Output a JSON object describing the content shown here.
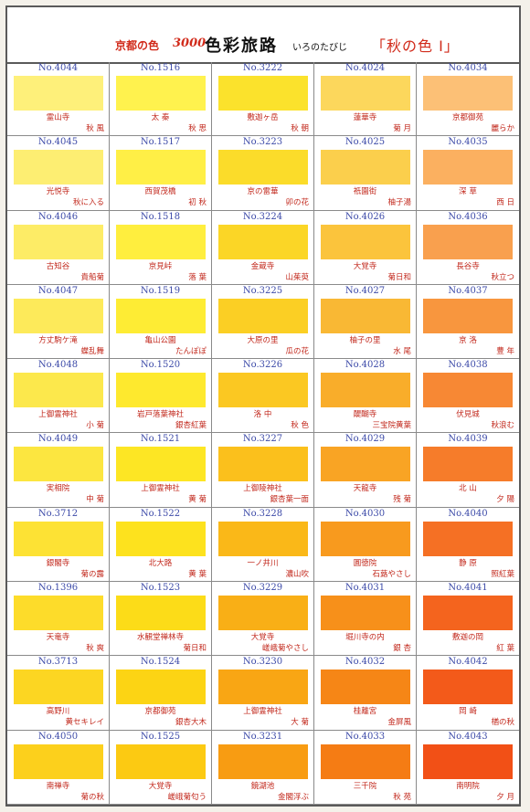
{
  "header": {
    "series": "京都の色",
    "count": "3000",
    "title": "色彩旅路",
    "subtitle": "いろのたびじ",
    "volume": "「秋の色 Ⅰ」"
  },
  "rows": [
    [
      {
        "no": "No.4044",
        "place": "霊山寺",
        "name": "秋 風",
        "color": "#fef07a"
      },
      {
        "no": "No.1516",
        "place": "太 秦",
        "name": "秋 思",
        "color": "#fff24e"
      },
      {
        "no": "No.3222",
        "place": "敷迦ヶ岳",
        "name": "秋 朝",
        "color": "#fbe22c"
      },
      {
        "no": "No.4024",
        "place": "蓮華寺",
        "name": "菊 月",
        "color": "#fcd75c"
      },
      {
        "no": "No.4034",
        "place": "京都御苑",
        "name": "麗らか",
        "color": "#fcc076"
      }
    ],
    [
      {
        "no": "No.4045",
        "place": "光悦寺",
        "name": "秋に入る",
        "color": "#fdee72"
      },
      {
        "no": "No.1517",
        "place": "西賀茂橋",
        "name": "初 秋",
        "color": "#ffef46"
      },
      {
        "no": "No.3223",
        "place": "京の雷華",
        "name": "卯の花",
        "color": "#fbdc2a"
      },
      {
        "no": "No.4025",
        "place": "祇園街",
        "name": "柚子湯",
        "color": "#fbcf4c"
      },
      {
        "no": "No.4035",
        "place": "深 草",
        "name": "西 日",
        "color": "#fbb060"
      }
    ],
    [
      {
        "no": "No.4046",
        "place": "古知谷",
        "name": "貴船菊",
        "color": "#fdec66"
      },
      {
        "no": "No.1518",
        "place": "京見峠",
        "name": "落 葉",
        "color": "#ffee3e"
      },
      {
        "no": "No.3224",
        "place": "金蔵寺",
        "name": "山茱萸",
        "color": "#fbd626"
      },
      {
        "no": "No.4026",
        "place": "大覚寺",
        "name": "菊日和",
        "color": "#fbc43c"
      },
      {
        "no": "No.4036",
        "place": "長谷寺",
        "name": "秋立つ",
        "color": "#f9a04e"
      }
    ],
    [
      {
        "no": "No.4047",
        "place": "方丈駒ケ滝",
        "name": "蝶乱舞",
        "color": "#fdea5a"
      },
      {
        "no": "No.1519",
        "place": "亀山公園",
        "name": "たんぽぽ",
        "color": "#feec34"
      },
      {
        "no": "No.3225",
        "place": "大原の里",
        "name": "瓜の花",
        "color": "#fbcf24"
      },
      {
        "no": "No.4027",
        "place": "柚子の里",
        "name": "水 尾",
        "color": "#f9b834"
      },
      {
        "no": "No.4037",
        "place": "京 洛",
        "name": "豊 年",
        "color": "#f8963e"
      }
    ],
    [
      {
        "no": "No.4048",
        "place": "上御霊神社",
        "name": "小 菊",
        "color": "#fce84c"
      },
      {
        "no": "No.1520",
        "place": "岩戸落葉神社",
        "name": "銀杏紅葉",
        "color": "#fee92e"
      },
      {
        "no": "No.3226",
        "place": "洛 中",
        "name": "秋 色",
        "color": "#fbc822"
      },
      {
        "no": "No.4028",
        "place": "醍醐寺",
        "name": "三宝院黄葉",
        "color": "#f9ad2a"
      },
      {
        "no": "No.4038",
        "place": "伏見城",
        "name": "秋浪む",
        "color": "#f78834"
      }
    ],
    [
      {
        "no": "No.4049",
        "place": "実相院",
        "name": "中 菊",
        "color": "#fce640"
      },
      {
        "no": "No.1521",
        "place": "上御霊神社",
        "name": "黄 菊",
        "color": "#fde624"
      },
      {
        "no": "No.3227",
        "place": "上御陵神社",
        "name": "銀杏葉一面",
        "color": "#fbc01c"
      },
      {
        "no": "No.4029",
        "place": "天龍寺",
        "name": "残 菊",
        "color": "#f9a424"
      },
      {
        "no": "No.4039",
        "place": "北 山",
        "name": "夕 陽",
        "color": "#f67c2a"
      }
    ],
    [
      {
        "no": "No.3712",
        "place": "銀閣寺",
        "name": "菊の露",
        "color": "#fde234"
      },
      {
        "no": "No.1522",
        "place": "北大路",
        "name": "黄 葉",
        "color": "#fde21e"
      },
      {
        "no": "No.3228",
        "place": "一ノ井川",
        "name": "濃山吹",
        "color": "#fab818"
      },
      {
        "no": "No.4030",
        "place": "圓徳院",
        "name": "石蕗やさし",
        "color": "#f89a1e"
      },
      {
        "no": "No.4040",
        "place": "静 原",
        "name": "照紅葉",
        "color": "#f57024"
      }
    ],
    [
      {
        "no": "No.1396",
        "place": "天竜寺",
        "name": "秋 爽",
        "color": "#fddc2a"
      },
      {
        "no": "No.1523",
        "place": "水観堂禅林寺",
        "name": "菊日和",
        "color": "#fcdc18"
      },
      {
        "no": "No.3229",
        "place": "大覚寺",
        "name": "嵯峨菊やさし",
        "color": "#f9af16"
      },
      {
        "no": "No.4031",
        "place": "堀川寺の内",
        "name": "銀 杏",
        "color": "#f7901a"
      },
      {
        "no": "No.4041",
        "place": "敷迦の岡",
        "name": "紅 葉",
        "color": "#f4641e"
      }
    ],
    [
      {
        "no": "No.3713",
        "place": "高野川",
        "name": "黄セキレイ",
        "color": "#fcd622"
      },
      {
        "no": "No.1524",
        "place": "京都御苑",
        "name": "銀杏大木",
        "color": "#fcd414"
      },
      {
        "no": "No.3230",
        "place": "上御霊神社",
        "name": "大 菊",
        "color": "#f9a614"
      },
      {
        "no": "No.4032",
        "place": "桂離宮",
        "name": "金屏風",
        "color": "#f68616"
      },
      {
        "no": "No.4042",
        "place": "岡 崎",
        "name": "楢の秋",
        "color": "#f35a1a"
      }
    ],
    [
      {
        "no": "No.4050",
        "place": "南禅寺",
        "name": "菊の秋",
        "color": "#fcd01c"
      },
      {
        "no": "No.1525",
        "place": "大覚寺",
        "name": "嵯峨菊匂う",
        "color": "#fcca12"
      },
      {
        "no": "No.3231",
        "place": "鏡湖池",
        "name": "金閣浮ぶ",
        "color": "#f89c12"
      },
      {
        "no": "No.4033",
        "place": "三千院",
        "name": "秋 苑",
        "color": "#f57c14"
      },
      {
        "no": "No.4043",
        "place": "南明院",
        "name": "夕 月",
        "color": "#f25016"
      }
    ]
  ]
}
